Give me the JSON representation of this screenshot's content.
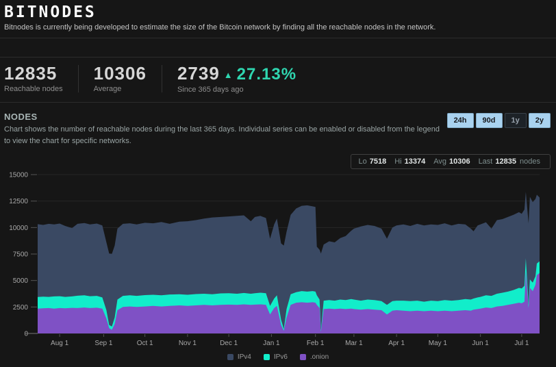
{
  "header": {
    "logo": "BITNODES",
    "tagline": "Bitnodes is currently being developed to estimate the size of the Bitcoin network by finding all the reachable nodes in the network."
  },
  "stats": [
    {
      "value": "12835",
      "label": "Reachable nodes"
    },
    {
      "value": "10306",
      "label": "Average"
    },
    {
      "value": "2739",
      "delta_arrow": "▲",
      "delta_pct": "27.13%",
      "label": "Since 365 days ago"
    }
  ],
  "section": {
    "title": "NODES",
    "description": "Chart shows the number of reachable nodes during the last 365 days. Individual series can be enabled or disabled from the legend to view the chart for specific networks.",
    "range_buttons": [
      {
        "label": "24h",
        "active": false
      },
      {
        "label": "90d",
        "active": false
      },
      {
        "label": "1y",
        "active": true
      },
      {
        "label": "2y",
        "active": false
      }
    ]
  },
  "summary": {
    "lo_label": "Lo",
    "lo": "7518",
    "hi_label": "Hi",
    "hi": "13374",
    "avg_label": "Avg",
    "avg": "10306",
    "last_label": "Last",
    "last": "12835",
    "suffix": "nodes"
  },
  "colors": {
    "background": "#161616",
    "accent_teal": "#2fd6b0",
    "ipv4": "#3a4963",
    "ipv6": "#12edca",
    "onion": "#7f51c5",
    "grid": "#262626",
    "axis_text": "#a8a8a8",
    "button_blue": "#a9d2ef"
  },
  "chart_data": {
    "type": "area",
    "stacked": true,
    "title": "Reachable nodes, last 365 days",
    "x_start": "Jul 15",
    "x_tick_labels": [
      "Aug 1",
      "Sep 1",
      "Oct 1",
      "Nov 1",
      "Dec 1",
      "Jan 1",
      "Feb 1",
      "Mar 1",
      "Apr 1",
      "May 1",
      "Jun 1",
      "Jul 1"
    ],
    "x_tick_days": [
      16,
      48,
      78,
      109,
      139,
      170,
      202,
      230,
      261,
      291,
      322,
      352
    ],
    "x_range_days": [
      0,
      365
    ],
    "ylim": [
      0,
      15000
    ],
    "y_ticks": [
      0,
      2500,
      5000,
      7500,
      10000,
      12500,
      15000
    ],
    "grid": true,
    "legend_position": "bottom-center",
    "legend": [
      {
        "name": "IPv4",
        "color": "#3a4963"
      },
      {
        "name": "IPv6",
        "color": "#12edca"
      },
      {
        "name": ".onion",
        "color": "#7f51c5"
      }
    ],
    "series_order_bottom_to_top": [
      ".onion",
      "IPv6",
      "IPv4"
    ],
    "point_format": [
      "day",
      "onion",
      "ipv6",
      "ipv4"
    ],
    "points": [
      [
        0,
        2350,
        1090,
        6880
      ],
      [
        4,
        2380,
        1100,
        6770
      ],
      [
        8,
        2400,
        1050,
        6900
      ],
      [
        12,
        2350,
        1150,
        6800
      ],
      [
        16,
        2400,
        1120,
        6860
      ],
      [
        20,
        2380,
        1070,
        6700
      ],
      [
        25,
        2420,
        1080,
        6450
      ],
      [
        29,
        2400,
        1160,
        6790
      ],
      [
        34,
        2450,
        1150,
        6820
      ],
      [
        38,
        2400,
        1120,
        6780
      ],
      [
        43,
        2430,
        1120,
        6830
      ],
      [
        47,
        2350,
        1050,
        6800
      ],
      [
        50,
        1400,
        800,
        6400
      ],
      [
        52,
        500,
        300,
        6750
      ],
      [
        54,
        350,
        300,
        6870
      ],
      [
        56,
        900,
        600,
        6800
      ],
      [
        58,
        2200,
        1000,
        6700
      ],
      [
        62,
        2500,
        1050,
        6800
      ],
      [
        67,
        2550,
        1050,
        6800
      ],
      [
        72,
        2500,
        1050,
        6750
      ],
      [
        78,
        2550,
        1070,
        6830
      ],
      [
        84,
        2600,
        1050,
        6750
      ],
      [
        90,
        2550,
        1050,
        6920
      ],
      [
        96,
        2600,
        1080,
        6670
      ],
      [
        103,
        2650,
        1050,
        6850
      ],
      [
        109,
        2600,
        1050,
        6950
      ],
      [
        115,
        2650,
        1070,
        6980
      ],
      [
        121,
        2700,
        1050,
        7100
      ],
      [
        127,
        2650,
        1050,
        7250
      ],
      [
        133,
        2700,
        1080,
        7220
      ],
      [
        139,
        2720,
        1080,
        7250
      ],
      [
        145,
        2700,
        1050,
        7350
      ],
      [
        150,
        2750,
        1070,
        7330
      ],
      [
        155,
        2700,
        1050,
        6850
      ],
      [
        158,
        2720,
        1080,
        7200
      ],
      [
        162,
        2750,
        1100,
        7250
      ],
      [
        166,
        2700,
        1100,
        7100
      ],
      [
        169,
        1800,
        800,
        6350
      ],
      [
        172,
        2400,
        900,
        7000
      ],
      [
        174,
        2600,
        1000,
        7250
      ],
      [
        177,
        800,
        500,
        7200
      ],
      [
        179,
        250,
        170,
        7880
      ],
      [
        181,
        1500,
        800,
        7300
      ],
      [
        184,
        2700,
        1000,
        7500
      ],
      [
        188,
        2900,
        1000,
        7900
      ],
      [
        192,
        2950,
        1050,
        8050
      ],
      [
        196,
        2900,
        1050,
        8150
      ],
      [
        200,
        2950,
        1050,
        8000
      ],
      [
        202,
        2900,
        1050,
        8000
      ],
      [
        203,
        2700,
        900,
        4600
      ],
      [
        205,
        2400,
        800,
        4700
      ],
      [
        206,
        150,
        150,
        7250
      ],
      [
        208,
        2300,
        800,
        5300
      ],
      [
        212,
        2350,
        800,
        5550
      ],
      [
        216,
        2300,
        800,
        5500
      ],
      [
        220,
        2350,
        850,
        5800
      ],
      [
        224,
        2300,
        850,
        6050
      ],
      [
        228,
        2350,
        900,
        6450
      ],
      [
        230,
        2300,
        900,
        6700
      ],
      [
        235,
        2250,
        850,
        7000
      ],
      [
        240,
        2300,
        900,
        7050
      ],
      [
        245,
        2250,
        900,
        7000
      ],
      [
        250,
        2200,
        850,
        6850
      ],
      [
        254,
        1800,
        900,
        6250
      ],
      [
        258,
        2150,
        900,
        6950
      ],
      [
        261,
        2200,
        900,
        7100
      ],
      [
        266,
        2150,
        950,
        7200
      ],
      [
        271,
        2100,
        950,
        7100
      ],
      [
        276,
        2150,
        950,
        7250
      ],
      [
        281,
        2100,
        900,
        7200
      ],
      [
        286,
        2150,
        950,
        7200
      ],
      [
        291,
        2100,
        950,
        7200
      ],
      [
        296,
        2150,
        1000,
        7250
      ],
      [
        301,
        2100,
        1000,
        7100
      ],
      [
        306,
        2150,
        1000,
        7200
      ],
      [
        311,
        2200,
        1050,
        7050
      ],
      [
        315,
        2150,
        1050,
        6700
      ],
      [
        317,
        2250,
        1050,
        6350
      ],
      [
        320,
        2300,
        1100,
        6800
      ],
      [
        322,
        2350,
        1100,
        6850
      ],
      [
        326,
        2450,
        1150,
        6900
      ],
      [
        330,
        2400,
        1150,
        6350
      ],
      [
        334,
        2550,
        1200,
        6950
      ],
      [
        338,
        2600,
        1250,
        6950
      ],
      [
        342,
        2700,
        1250,
        7050
      ],
      [
        346,
        2800,
        1300,
        7100
      ],
      [
        350,
        2900,
        1400,
        7150
      ],
      [
        352,
        2850,
        1400,
        7050
      ],
      [
        354,
        3000,
        1500,
        7200
      ],
      [
        355,
        5840,
        1260,
        6274
      ],
      [
        357,
        2400,
        300,
        7700
      ],
      [
        358,
        4300,
        800,
        7800
      ],
      [
        360,
        4000,
        800,
        7600
      ],
      [
        362,
        4600,
        800,
        7300
      ],
      [
        363,
        5500,
        1100,
        6500
      ],
      [
        365,
        5700,
        1115,
        6020
      ]
    ],
    "summary": {
      "lo": 7518,
      "hi": 13374,
      "avg": 10306,
      "last": 12835
    }
  }
}
